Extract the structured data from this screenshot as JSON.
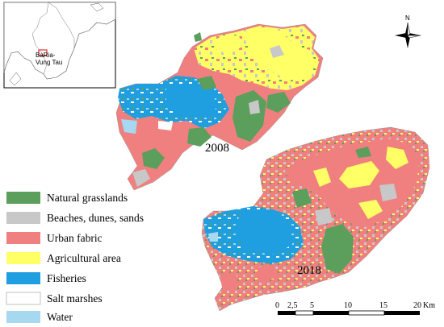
{
  "maps": [
    {
      "year_label": "2008"
    },
    {
      "year_label": "2018"
    }
  ],
  "legend": [
    {
      "label": "Natural grasslands",
      "color": "#5c9e5c"
    },
    {
      "label": "Beaches, dunes, sands",
      "color": "#c8c8c8"
    },
    {
      "label": "Urban fabric",
      "color": "#f08080"
    },
    {
      "label": "Agricultural area",
      "color": "#ffff66"
    },
    {
      "label": "Fisheries",
      "color": "#1f9ee0"
    },
    {
      "label": "Salt marshes",
      "color": "#ffffff"
    },
    {
      "label": "Water",
      "color": "#a6d8f0"
    }
  ],
  "inset": {
    "label_line1": "BaRia-",
    "label_line2": "Vung Tau"
  },
  "north_arrow": {
    "label": "N"
  },
  "scale_bar": {
    "ticks": [
      "0",
      "2,5",
      "5",
      "10",
      "15",
      "20"
    ],
    "unit": "Km"
  }
}
